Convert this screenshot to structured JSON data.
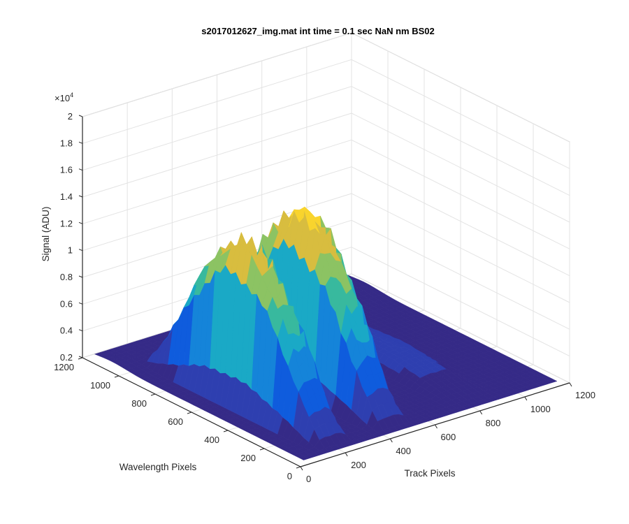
{
  "chart_data": {
    "type": "surface",
    "title": "s2017012627_img.mat int time = 0.1 sec  NaN nm BS02",
    "xlabel": "Track Pixels",
    "ylabel": "Wavelength Pixels",
    "zlabel": "Signal (ADU)",
    "z_exponent_label": "×10",
    "z_exponent_power": "4",
    "xlim": [
      0,
      1200
    ],
    "ylim": [
      0,
      1200
    ],
    "zlim": [
      0.2,
      2
    ],
    "x_ticks": [
      "0",
      "200",
      "400",
      "600",
      "800",
      "1000",
      "1200"
    ],
    "y_ticks": [
      "0",
      "200",
      "400",
      "600",
      "800",
      "1000",
      "1200"
    ],
    "z_ticks": [
      "0.2",
      "0.4",
      "0.6",
      "0.8",
      "1",
      "1.2",
      "1.4",
      "1.6",
      "1.8",
      "2"
    ],
    "grid": true,
    "colormap": "parula",
    "peaks": [
      {
        "track_center": 200,
        "peak_signal_x1e4": 1.38
      },
      {
        "track_center": 460,
        "peak_signal_x1e4": 1.47
      },
      {
        "track_center": 820,
        "peak_signal_x1e4": 0.33
      }
    ],
    "baseline_signal_x1e4": 0.22,
    "colors": {
      "low": "#352a87",
      "mid_low": "#0f5cdd",
      "mid": "#1aa9c6",
      "mid_high": "#5bc864",
      "high": "#f9d42d",
      "peak": "#f5a336"
    }
  }
}
